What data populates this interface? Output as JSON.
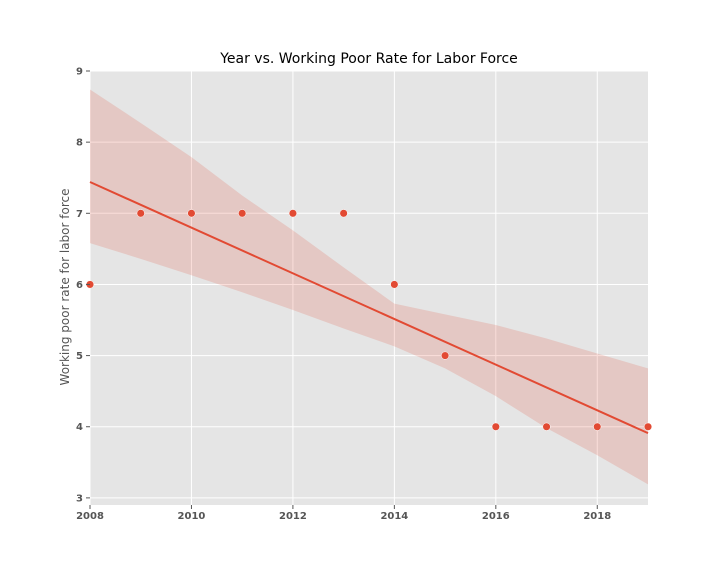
{
  "chart_data": {
    "type": "scatter",
    "title": "Year vs. Working Poor Rate for Labor Force",
    "xlabel": "",
    "ylabel": "Working poor rate for labor force",
    "xlim": [
      2008,
      2019
    ],
    "ylim": [
      2.9,
      9.0
    ],
    "xticks": [
      2008,
      2010,
      2012,
      2014,
      2016,
      2018
    ],
    "yticks": [
      3,
      4,
      5,
      6,
      7,
      8,
      9
    ],
    "grid": true,
    "series": [
      {
        "x": [
          2008,
          2009,
          2010,
          2011,
          2012,
          2013,
          2014,
          2015,
          2016,
          2017,
          2018,
          2019
        ],
        "y": [
          6,
          7,
          7,
          7,
          7,
          7,
          6,
          5,
          4,
          4,
          4,
          4
        ]
      }
    ],
    "regression": {
      "x": [
        2008,
        2019
      ],
      "y": [
        7.44,
        3.91
      ]
    },
    "confidence_band": {
      "x": [
        2008,
        2009,
        2010,
        2011,
        2012,
        2013,
        2014,
        2015,
        2016,
        2017,
        2018,
        2019
      ],
      "lower": [
        6.58,
        6.36,
        6.13,
        5.89,
        5.64,
        5.38,
        5.13,
        4.82,
        4.43,
        3.98,
        3.6,
        3.19
      ],
      "upper": [
        8.74,
        8.27,
        7.79,
        7.25,
        6.76,
        6.24,
        5.73,
        5.58,
        5.43,
        5.24,
        5.03,
        4.82
      ]
    },
    "colors": {
      "background": "#e5e5e5",
      "grid": "#ffffff",
      "points": "#e24a33",
      "line": "#e24a33",
      "band": "#e24a33"
    }
  }
}
